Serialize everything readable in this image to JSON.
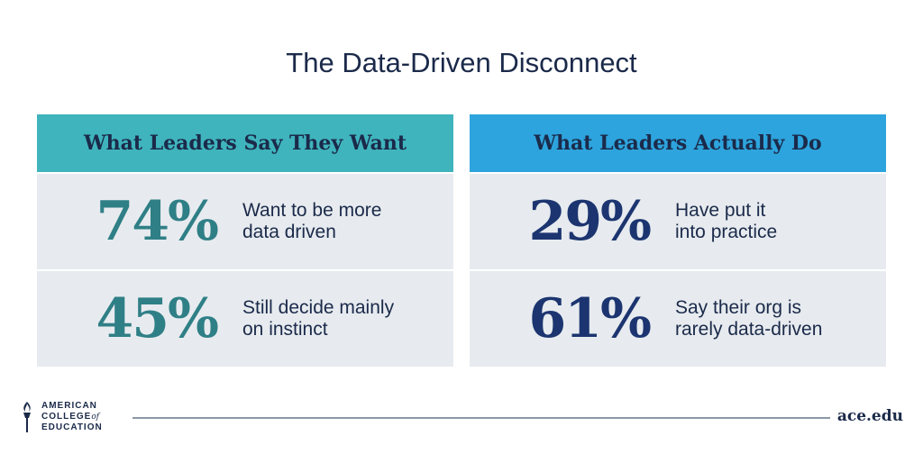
{
  "title": "The Data-Driven Disconnect",
  "panels": {
    "left": {
      "header": "What Leaders Say They Want",
      "header_color": "#3fb4bd",
      "stat_color": "#2f7f86",
      "rows": [
        {
          "stat": "74%",
          "desc": "Want to be more\ndata driven"
        },
        {
          "stat": "45%",
          "desc": "Still decide mainly\non instinct"
        }
      ]
    },
    "right": {
      "header": "What Leaders Actually Do",
      "header_color": "#2da4dd",
      "stat_color": "#1c3570",
      "rows": [
        {
          "stat": "29%",
          "desc": "Have put it\ninto practice"
        },
        {
          "stat": "61%",
          "desc": "Say their org is\nrarely data-driven"
        }
      ]
    }
  },
  "footer": {
    "logo": {
      "line1": "AMERICAN",
      "line2": "COLLEGE",
      "line2_of": "of",
      "line3": "EDUCATION",
      "icon": "torch-icon"
    },
    "website": "ace.edu"
  },
  "colors": {
    "text": "#1b2a4a",
    "row_bg": "#e7ebef",
    "rule": "#8a98a6"
  }
}
